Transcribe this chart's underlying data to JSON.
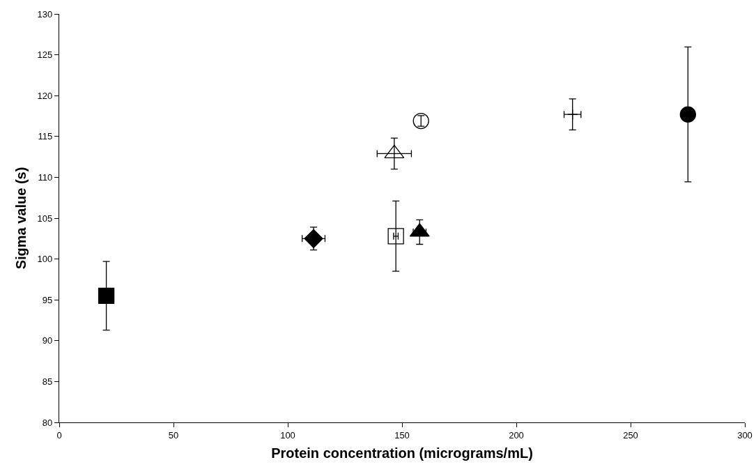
{
  "chart_data": {
    "type": "scatter",
    "xlabel": "Protein concentration (micrograms/mL)",
    "ylabel": "Sigma value (s)",
    "xlim": [
      0,
      300
    ],
    "xticks": [
      0,
      50,
      100,
      150,
      200,
      250,
      300
    ],
    "ylim": [
      80,
      130
    ],
    "yticks": [
      80,
      85,
      90,
      95,
      100,
      105,
      110,
      115,
      120,
      125,
      130
    ],
    "grid": false,
    "series": [
      {
        "color": "#000000",
        "marker": "square",
        "x": [
          20.6
        ],
        "values": [
          95.5
        ],
        "errors": [
          4.2
        ],
        "xerrors": [
          null
        ]
      },
      {
        "color": "#000000",
        "marker": "diamond",
        "x": [
          111.3
        ],
        "values": [
          102.5
        ],
        "errors": [
          1.4
        ],
        "xerrors": [
          5
        ]
      },
      {
        "color": "#ffffff",
        "marker": "square",
        "x": [
          147.3
        ],
        "values": [
          102.8
        ],
        "errors": [
          4.3
        ],
        "xerrors": [
          1
        ]
      },
      {
        "color": "#000000",
        "marker": "triangle",
        "x": [
          157.7
        ],
        "values": [
          103.3
        ],
        "errors": [
          1.5
        ],
        "xerrors": [
          2.8
        ]
      },
      {
        "color": "#ffffff",
        "marker": "triangle",
        "x": [
          146.6
        ],
        "values": [
          112.9
        ],
        "errors": [
          1.9
        ],
        "xerrors": [
          7.5
        ]
      },
      {
        "color": "#ffffff",
        "marker": "circle",
        "x": [
          158.3
        ],
        "values": [
          116.9
        ],
        "errors": [
          0.65
        ],
        "xerrors": [
          null
        ]
      },
      {
        "color": "#000000",
        "marker": "cross",
        "x": [
          224.6
        ],
        "values": [
          117.7
        ],
        "errors": [
          1.9
        ],
        "xerrors": [
          3.7
        ]
      },
      {
        "color": "#000000",
        "marker": "circle",
        "x": [
          275.1
        ],
        "values": [
          117.7
        ],
        "errors": [
          8.25
        ],
        "xerrors": [
          null
        ]
      }
    ]
  }
}
